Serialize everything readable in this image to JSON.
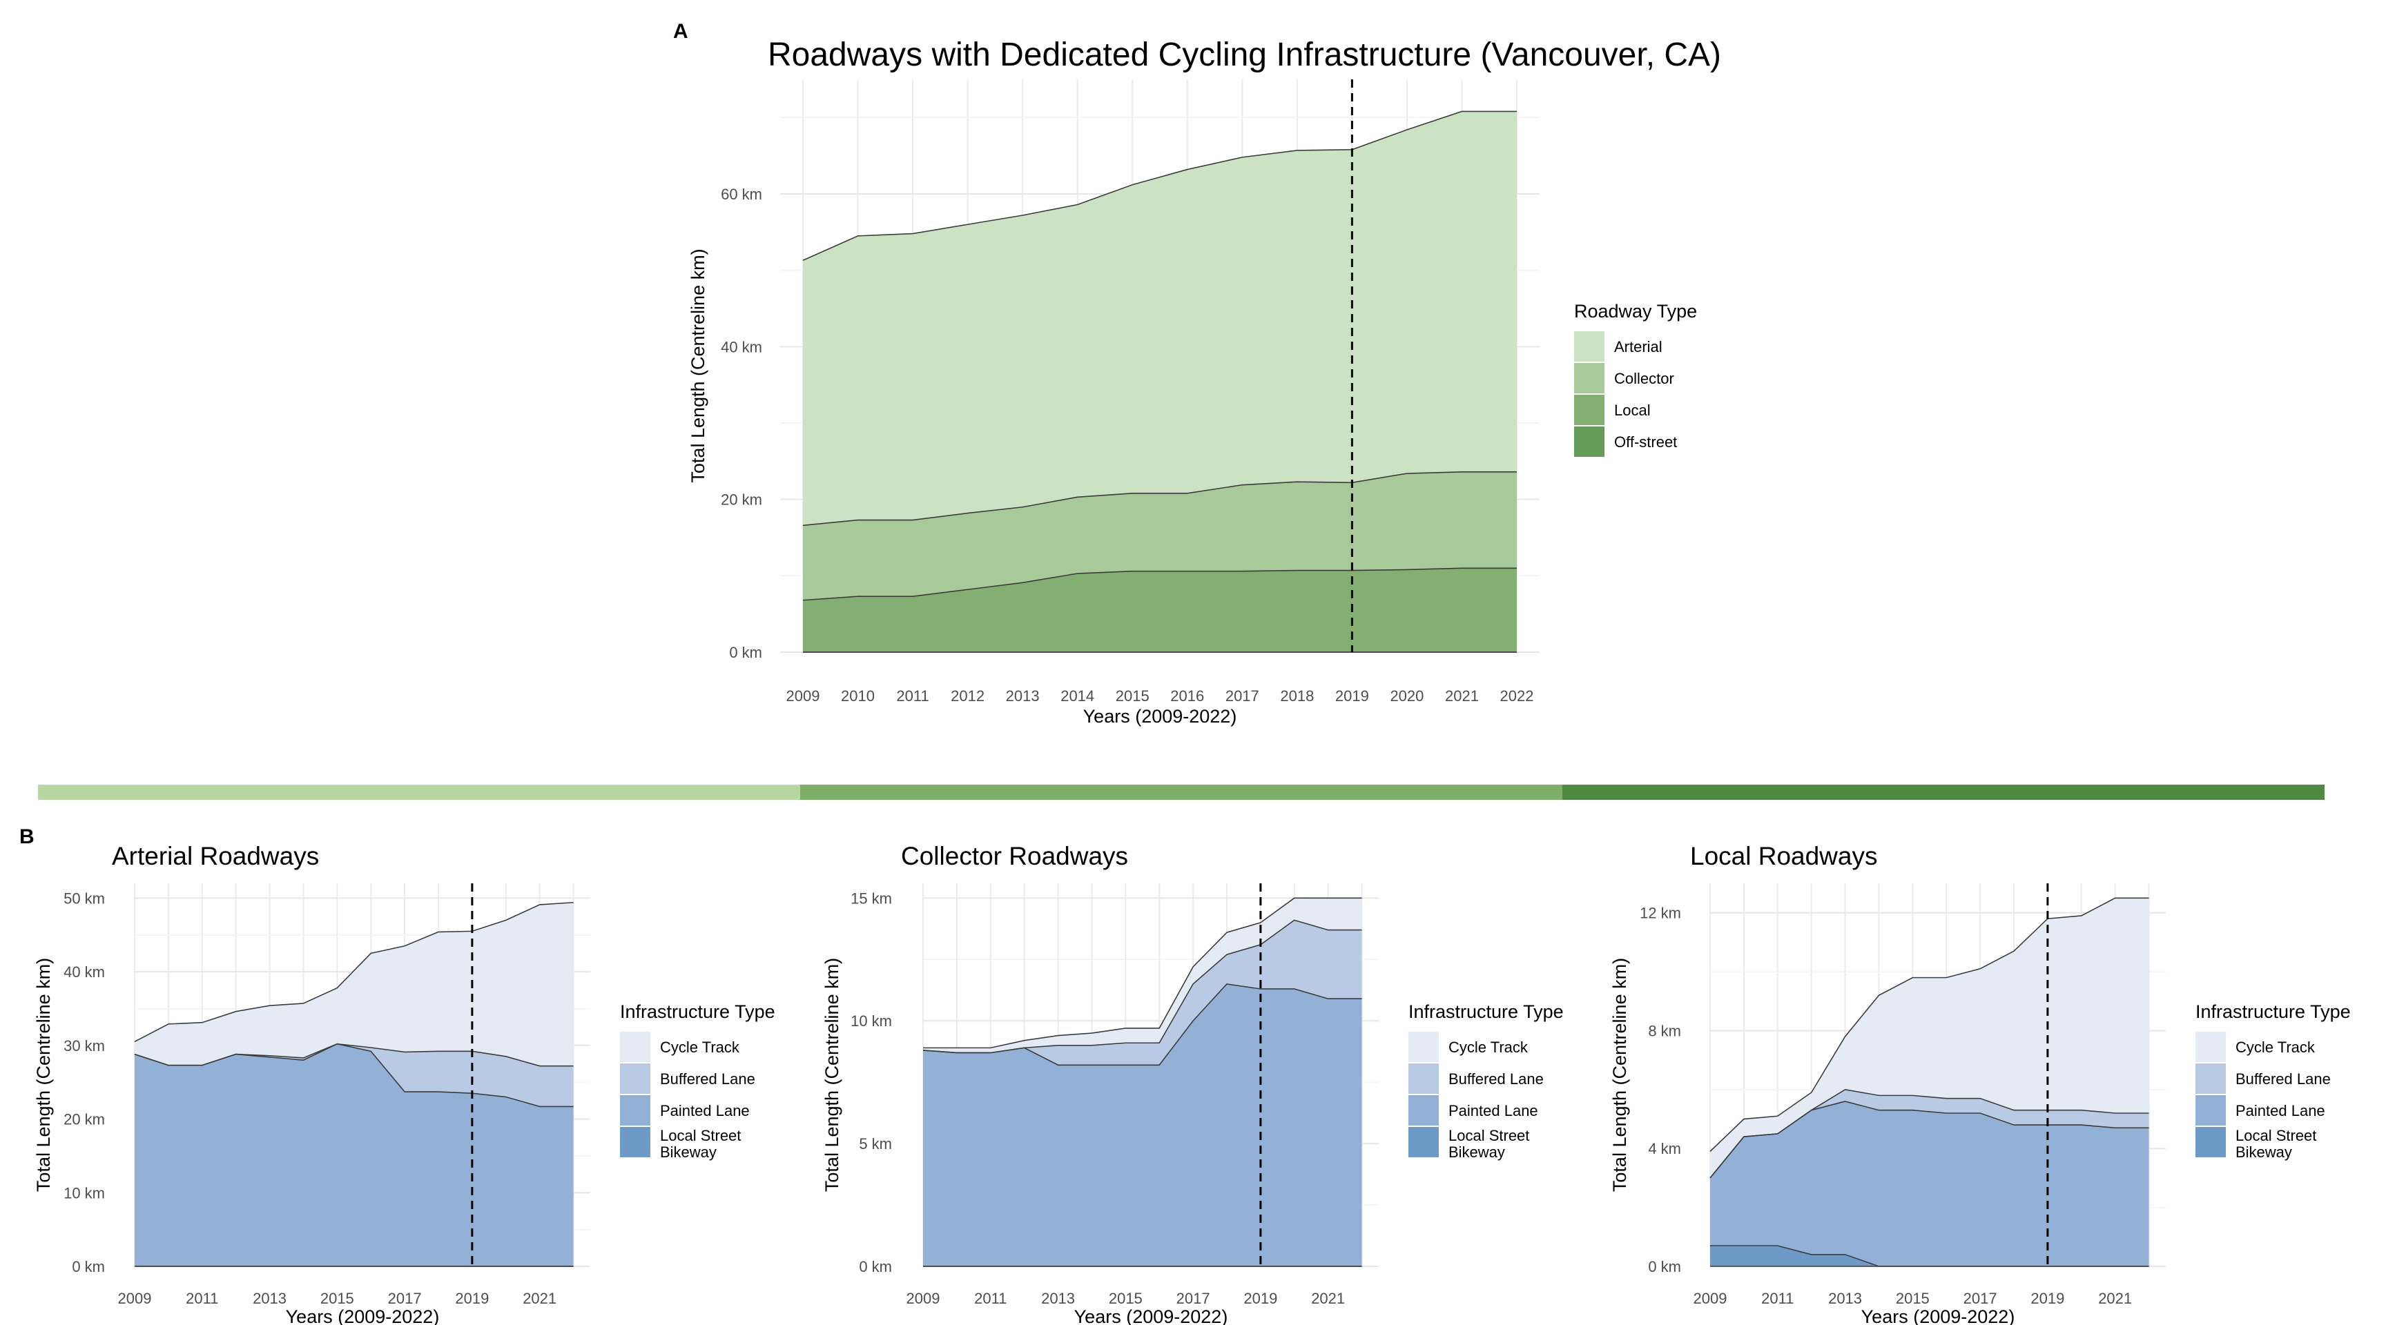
{
  "colors": {
    "arterial": "#cbe3c3",
    "collector": "#a8c999",
    "local": "#83b072",
    "offstreet": "#669c5a",
    "cycle_track": "#e4ebf5",
    "buffered_lane": "#b9cbe4",
    "painted_lane": "#93b1d6",
    "local_street_bikeway": "#6e9ac8",
    "divider": [
      "#b6d6a2",
      "#7fae6a",
      "#4e8a42"
    ]
  },
  "panel_labels": {
    "a": "A",
    "b": "B"
  },
  "chart_data": [
    {
      "type": "area",
      "stacked": true,
      "title": "Roadways with Dedicated Cycling Infrastructure (Vancouver, CA)",
      "xlabel": "Years (2009-2022)",
      "ylabel": "Total Length (Centreline km)",
      "x": [
        2009,
        2010,
        2011,
        2012,
        2013,
        2014,
        2015,
        2016,
        2017,
        2018,
        2019,
        2020,
        2021,
        2022
      ],
      "x_ticks": [
        "2009",
        "2010",
        "2011",
        "2012",
        "2013",
        "2014",
        "2015",
        "2016",
        "2017",
        "2018",
        "2019",
        "2020",
        "2021",
        "2022"
      ],
      "xlim": [
        2009,
        2022
      ],
      "ylim": [
        0,
        75
      ],
      "y_ticks": [
        0,
        20,
        40,
        60
      ],
      "y_tick_labels": [
        "0 km",
        "20 km",
        "40 km",
        "60 km"
      ],
      "vline": 2019,
      "grid": true,
      "legend": {
        "title": "Roadway Type",
        "placement": "right",
        "items": [
          "Arterial",
          "Collector",
          "Local",
          "Off-street"
        ]
      },
      "series": [
        {
          "name": "Off-street",
          "color_key": "offstreet",
          "values": [
            0,
            0,
            0,
            0,
            0,
            0,
            0,
            0,
            0,
            0,
            0,
            0,
            0,
            0
          ]
        },
        {
          "name": "Local",
          "color_key": "local",
          "values": [
            6.8,
            7.3,
            7.3,
            8.2,
            9.1,
            10.3,
            10.6,
            10.6,
            10.6,
            10.7,
            10.7,
            10.8,
            11.0,
            11.0
          ]
        },
        {
          "name": "Collector",
          "color_key": "collector",
          "values": [
            9.8,
            10.0,
            10.0,
            10.0,
            9.9,
            10.0,
            10.2,
            10.2,
            11.3,
            11.6,
            11.5,
            12.6,
            12.6,
            12.6
          ]
        },
        {
          "name": "Arterial",
          "color_key": "arterial",
          "values": [
            34.7,
            37.2,
            37.5,
            37.8,
            38.2,
            38.3,
            40.4,
            42.4,
            42.9,
            43.4,
            43.6,
            45.0,
            47.2,
            47.2
          ]
        }
      ]
    },
    {
      "type": "area",
      "stacked": true,
      "title": "Arterial Roadways",
      "xlabel": "Years (2009-2022)",
      "ylabel": "Total Length (Centreline km)",
      "x": [
        2009,
        2010,
        2011,
        2012,
        2013,
        2014,
        2015,
        2016,
        2017,
        2018,
        2019,
        2020,
        2021,
        2022
      ],
      "x_ticks": [
        "2009",
        "2011",
        "2013",
        "2015",
        "2017",
        "2019",
        "2021"
      ],
      "xlim": [
        2009,
        2022.5
      ],
      "ylim": [
        0,
        52
      ],
      "y_ticks": [
        0,
        10,
        20,
        30,
        40,
        50
      ],
      "y_tick_labels": [
        "0 km",
        "10 km",
        "20 km",
        "30 km",
        "40 km",
        "50 km"
      ],
      "vline": 2019,
      "grid": true,
      "legend": {
        "title": "Infrastructure Type",
        "placement": "right",
        "items": [
          "Cycle Track",
          "Buffered Lane",
          "Painted Lane",
          "Local Street Bikeway"
        ]
      },
      "series": [
        {
          "name": "Local Street Bikeway",
          "color_key": "local_street_bikeway",
          "values": [
            0,
            0,
            0,
            0,
            0,
            0,
            0,
            0,
            0,
            0,
            0,
            0,
            0,
            0
          ]
        },
        {
          "name": "Painted Lane",
          "color_key": "painted_lane",
          "values": [
            28.8,
            27.3,
            27.3,
            28.8,
            28.4,
            28.0,
            30.2,
            29.2,
            23.7,
            23.7,
            23.5,
            23.0,
            21.7,
            21.7
          ]
        },
        {
          "name": "Buffered Lane",
          "color_key": "buffered_lane",
          "values": [
            0,
            0,
            0,
            0,
            0.2,
            0.3,
            0,
            0.5,
            5.4,
            5.5,
            5.7,
            5.5,
            5.5,
            5.5
          ]
        },
        {
          "name": "Cycle Track",
          "color_key": "cycle_track",
          "values": [
            1.7,
            5.6,
            5.8,
            5.8,
            6.8,
            7.4,
            7.6,
            12.8,
            14.4,
            16.2,
            16.3,
            18.5,
            21.9,
            22.2
          ]
        }
      ]
    },
    {
      "type": "area",
      "stacked": true,
      "title": "Collector Roadways",
      "xlabel": "Years (2009-2022)",
      "ylabel": "Total Length (Centreline km)",
      "x": [
        2009,
        2010,
        2011,
        2012,
        2013,
        2014,
        2015,
        2016,
        2017,
        2018,
        2019,
        2020,
        2021,
        2022
      ],
      "x_ticks": [
        "2009",
        "2011",
        "2013",
        "2015",
        "2017",
        "2019",
        "2021"
      ],
      "xlim": [
        2009,
        2022.5
      ],
      "ylim": [
        0,
        15.6
      ],
      "y_ticks": [
        0,
        5,
        10,
        15
      ],
      "y_tick_labels": [
        "0 km",
        "5 km",
        "10 km",
        "15 km"
      ],
      "vline": 2019,
      "grid": true,
      "legend": {
        "title": "Infrastructure Type",
        "placement": "right",
        "items": [
          "Cycle Track",
          "Buffered Lane",
          "Painted Lane",
          "Local Street Bikeway"
        ]
      },
      "series": [
        {
          "name": "Local Street Bikeway",
          "color_key": "local_street_bikeway",
          "values": [
            0,
            0,
            0,
            0,
            0,
            0,
            0,
            0,
            0,
            0,
            0,
            0,
            0,
            0
          ]
        },
        {
          "name": "Painted Lane",
          "color_key": "painted_lane",
          "values": [
            8.8,
            8.7,
            8.7,
            8.9,
            8.2,
            8.2,
            8.2,
            8.2,
            10.0,
            11.5,
            11.3,
            11.3,
            10.9,
            10.9
          ]
        },
        {
          "name": "Buffered Lane",
          "color_key": "buffered_lane",
          "values": [
            0,
            0,
            0,
            0,
            0.8,
            0.8,
            0.9,
            0.9,
            1.5,
            1.2,
            1.8,
            2.8,
            2.8,
            2.8
          ]
        },
        {
          "name": "Cycle Track",
          "color_key": "cycle_track",
          "values": [
            0.1,
            0.2,
            0.2,
            0.3,
            0.4,
            0.5,
            0.6,
            0.6,
            0.7,
            0.9,
            0.9,
            0.9,
            1.3,
            1.3
          ]
        }
      ]
    },
    {
      "type": "area",
      "stacked": true,
      "title": "Local Roadways",
      "xlabel": "Years (2009-2022)",
      "ylabel": "Total Length (Centreline km)",
      "x": [
        2009,
        2010,
        2011,
        2012,
        2013,
        2014,
        2015,
        2016,
        2017,
        2018,
        2019,
        2020,
        2021,
        2022
      ],
      "x_ticks": [
        "2009",
        "2011",
        "2013",
        "2015",
        "2017",
        "2019",
        "2021"
      ],
      "xlim": [
        2009,
        2022.5
      ],
      "ylim": [
        0,
        13
      ],
      "y_ticks": [
        0,
        4,
        8,
        12
      ],
      "y_tick_labels": [
        "0 km",
        "4 km",
        "8 km",
        "12 km"
      ],
      "vline": 2019,
      "grid": true,
      "legend": {
        "title": "Infrastructure Type",
        "placement": "right",
        "items": [
          "Cycle Track",
          "Buffered Lane",
          "Painted Lane",
          "Local Street Bikeway"
        ]
      },
      "series": [
        {
          "name": "Local Street Bikeway",
          "color_key": "local_street_bikeway",
          "values": [
            0.7,
            0.7,
            0.7,
            0.4,
            0.4,
            0,
            0,
            0,
            0,
            0,
            0,
            0,
            0,
            0
          ]
        },
        {
          "name": "Painted Lane",
          "color_key": "painted_lane",
          "values": [
            2.3,
            3.7,
            3.8,
            4.9,
            5.2,
            5.3,
            5.3,
            5.2,
            5.2,
            4.8,
            4.8,
            4.8,
            4.7,
            4.7
          ]
        },
        {
          "name": "Buffered Lane",
          "color_key": "buffered_lane",
          "values": [
            0,
            0,
            0,
            0,
            0.4,
            0.5,
            0.5,
            0.5,
            0.5,
            0.5,
            0.5,
            0.5,
            0.5,
            0.5
          ]
        },
        {
          "name": "Cycle Track",
          "color_key": "cycle_track",
          "values": [
            0.9,
            0.6,
            0.6,
            0.6,
            1.8,
            3.4,
            4.0,
            4.1,
            4.4,
            5.4,
            6.5,
            6.6,
            7.3,
            7.3
          ]
        }
      ]
    }
  ]
}
